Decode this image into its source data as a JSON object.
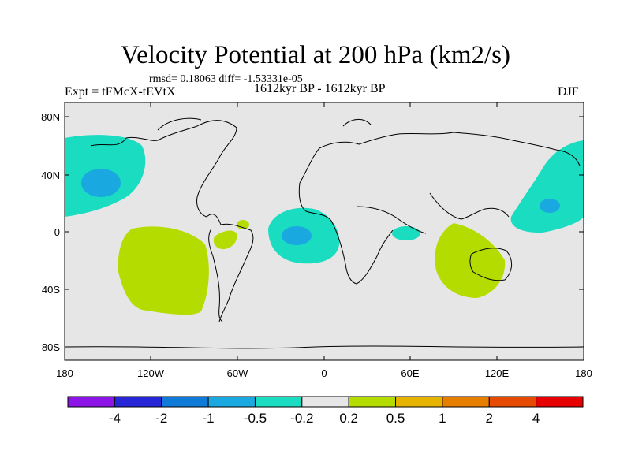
{
  "title": "Velocity Potential at 200 hPa (km2/s)",
  "stats": "rmsd= 0.18063 diff= -1.53331e-05",
  "experiment": "Expt = tFMcX-tEVtX",
  "period": "1612kyr BP - 1612kyr BP",
  "season": "DJF",
  "latitude_labels": [
    "80N",
    "40N",
    "0",
    "40S",
    "80S"
  ],
  "longitude_labels": [
    "180",
    "120W",
    "60W",
    "0",
    "60E",
    "120E",
    "180"
  ],
  "colorbar": {
    "labels": [
      "-4",
      "-2",
      "-1",
      "-0.5",
      "-0.2",
      "0.2",
      "0.5",
      "1",
      "2",
      "4"
    ],
    "colors": [
      "#8c14e6",
      "#2626d6",
      "#0f7ad8",
      "#1aa8e0",
      "#19dcc0",
      "#e6e6e6",
      "#b4dc00",
      "#e6b400",
      "#e67e00",
      "#e64a00",
      "#e60000"
    ]
  },
  "colors": {
    "land_ocean_background": "#e6e6e6",
    "positive_0_2": "#b4dc00",
    "negative_0_2": "#19dcc0",
    "negative_0_5": "#1aa8e0"
  }
}
